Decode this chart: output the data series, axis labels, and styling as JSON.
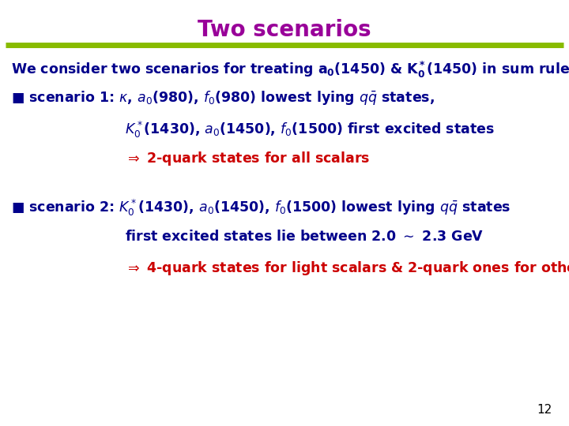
{
  "title": "Two scenarios",
  "title_color": "#990099",
  "title_fontsize": 20,
  "line_color": "#88bb00",
  "background_color": "#ffffff",
  "dark_blue": "#00008B",
  "red": "#cc0000",
  "page_number": "12"
}
